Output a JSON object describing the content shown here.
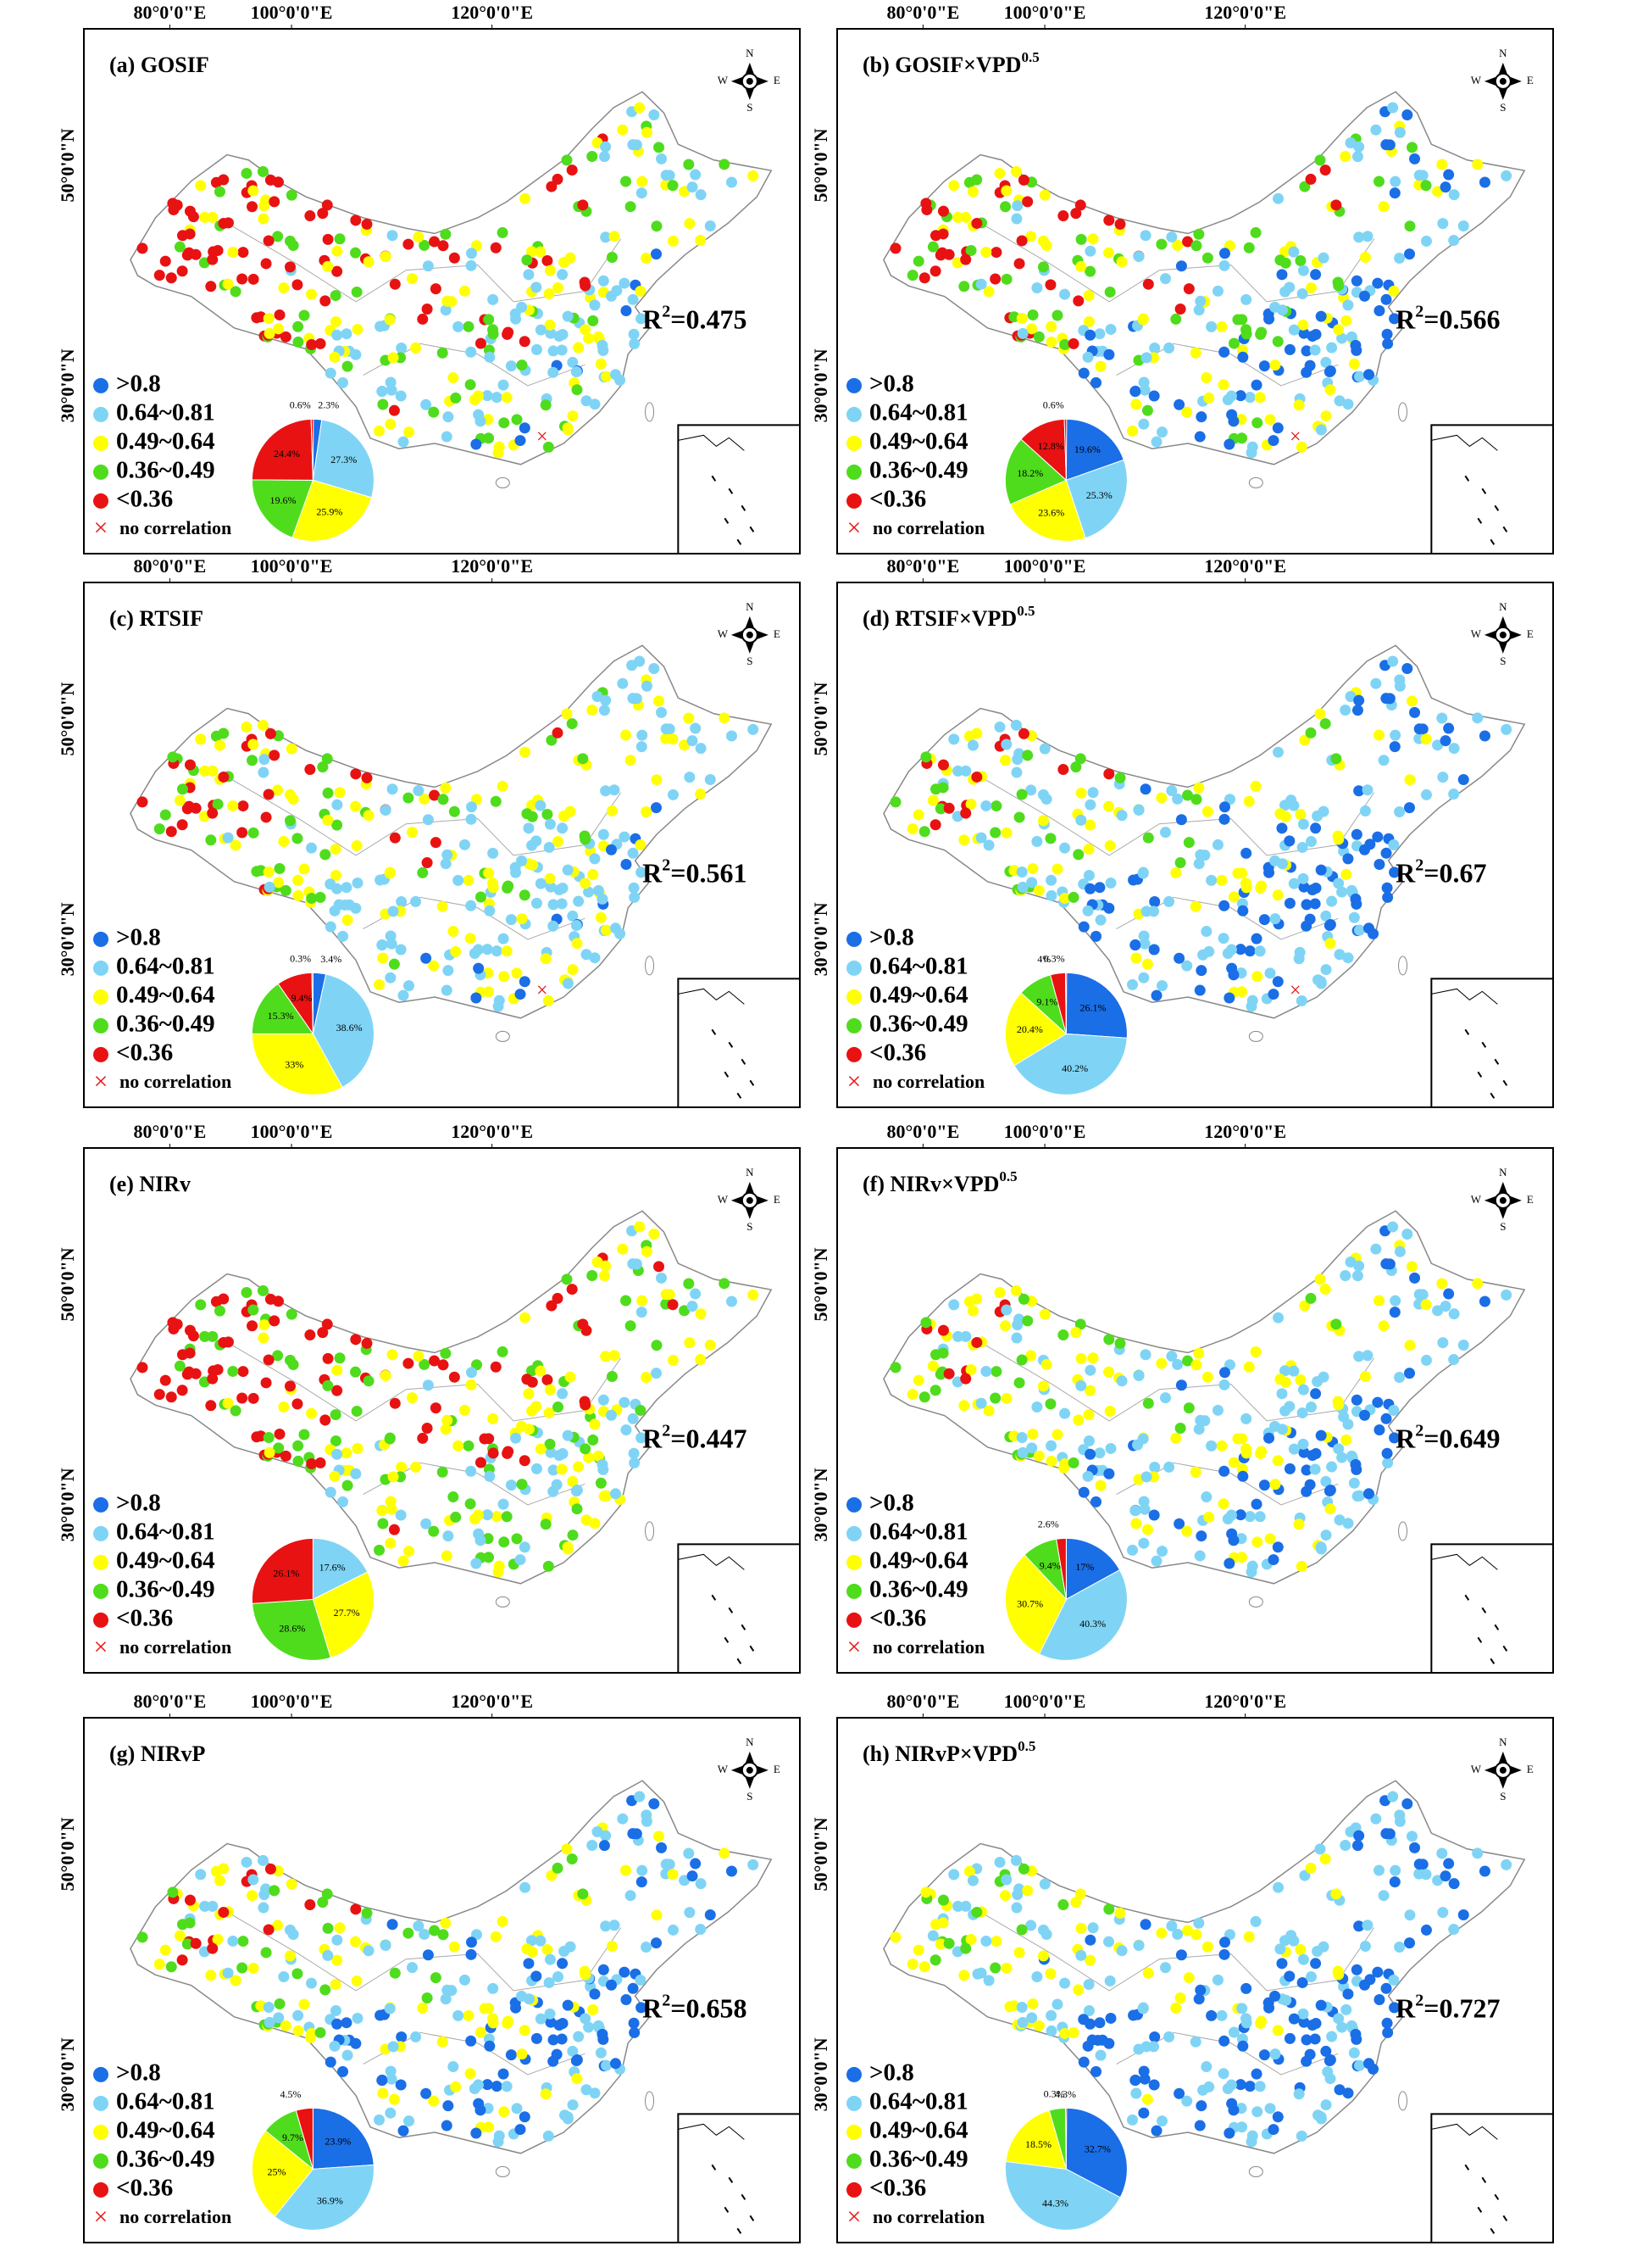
{
  "axis_labels": {
    "longitude": [
      "80°0'0\"E",
      "100°0'0\"E",
      "120°0'0\"E"
    ],
    "latitude": [
      "50°0'0\"N",
      "30°0'0\"N"
    ]
  },
  "compass": [
    "N",
    "E",
    "S",
    "W"
  ],
  "legend": {
    "items": [
      ">0.8",
      "0.64~0.81",
      "0.49~0.64",
      "0.36~0.49",
      "<0.36",
      "no correlation"
    ],
    "colors": [
      "#1a6ee6",
      "#7fd4f5",
      "#ffff00",
      "#4fdc1c",
      "#e81212",
      "#e81212"
    ]
  },
  "panels": [
    {
      "title": "(a) GOSIF",
      "r2": {
        "text": "R",
        "sup": "2",
        "value": "=0.475"
      },
      "pie": {
        "type": "pie",
        "values": [
          2.3,
          27.3,
          25.9,
          19.6,
          24.4,
          0.6
        ],
        "value_labels": [
          "2.3%",
          "27.3%",
          "25.9%",
          "19.6%",
          "24.4%",
          "0.6%"
        ]
      }
    },
    {
      "title": "(b) GOSIF×VPD",
      "title_sup": "0.5",
      "r2": {
        "text": "R",
        "sup": "2",
        "value": "=0.566"
      },
      "pie": {
        "type": "pie",
        "values": [
          19.6,
          25.3,
          23.6,
          18.2,
          12.8,
          0.6
        ],
        "value_labels": [
          "19.6%",
          "25.3%",
          "23.6%",
          "18.2%",
          "12.8%",
          "0.6%"
        ]
      }
    },
    {
      "title": "(c) RTSIF",
      "r2": {
        "text": "R",
        "sup": "2",
        "value": "=0.561"
      },
      "pie": {
        "type": "pie",
        "values": [
          3.4,
          38.6,
          33,
          15.3,
          9.4,
          0.3
        ],
        "value_labels": [
          "3.4%",
          "38.6%",
          "33%",
          "15.3%",
          "9.4%",
          "0.3%"
        ]
      }
    },
    {
      "title": "(d) RTSIF×VPD",
      "title_sup": "0.5",
      "r2": {
        "text": "R",
        "sup": "2",
        "value": "=0.67"
      },
      "pie": {
        "type": "pie",
        "values": [
          26.1,
          40.2,
          20.4,
          9.1,
          4,
          0.3
        ],
        "value_labels": [
          "26.1%",
          "40.2%",
          "20.4%",
          "9.1%",
          "4%",
          "0.3%"
        ]
      }
    },
    {
      "title": "(e) NIRv",
      "r2": {
        "text": "R",
        "sup": "2",
        "value": "=0.447"
      },
      "pie": {
        "type": "pie",
        "values": [
          null,
          17.6,
          27.7,
          28.6,
          26.1,
          null
        ],
        "value_labels": [
          null,
          "17.6%",
          "27.7%",
          "28.6%",
          "26.1%",
          null
        ]
      }
    },
    {
      "title": "(f) NIRv×VPD",
      "title_sup": "0.5",
      "r2": {
        "text": "R",
        "sup": "2",
        "value": "=0.649"
      },
      "pie": {
        "type": "pie",
        "values": [
          17,
          40.3,
          30.7,
          9.4,
          2.6,
          null
        ],
        "value_labels": [
          "17%",
          "40.3%",
          "30.7%",
          "9.4%",
          "2.6%",
          null
        ]
      }
    },
    {
      "title": "(g) NIRvP",
      "r2": {
        "text": "R",
        "sup": "2",
        "value": "=0.658"
      },
      "pie": {
        "type": "pie",
        "values": [
          23.9,
          36.9,
          25,
          9.7,
          4.5,
          null
        ],
        "value_labels": [
          "23.9%",
          "36.9%",
          "25%",
          "9.7%",
          "4.5%",
          null
        ]
      }
    },
    {
      "title": "(h) NIRvP×VPD",
      "title_sup": "0.5",
      "r2": {
        "text": "R",
        "sup": "2",
        "value": "=0.727"
      },
      "pie": {
        "type": "pie",
        "values": [
          32.7,
          44.3,
          18.5,
          4.3,
          0.3,
          null
        ],
        "value_labels": [
          "32.7%",
          "44.3%",
          "18.5%",
          "4.3%",
          "0.3%",
          null
        ]
      }
    }
  ]
}
